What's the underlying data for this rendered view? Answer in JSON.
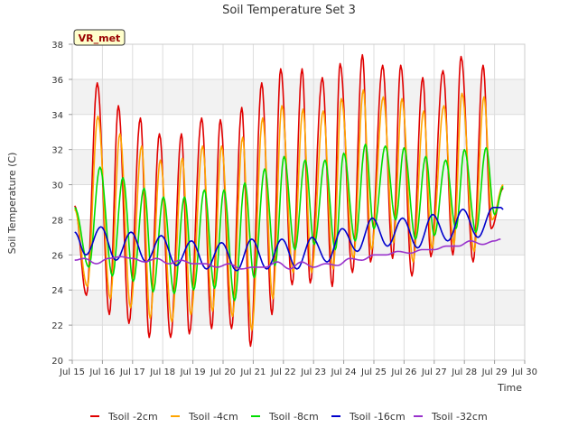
{
  "chart_data": {
    "type": "line",
    "title": "Soil Temperature Set 3",
    "xlabel": "Time",
    "ylabel": "Soil Temperature (C)",
    "badge": "VR_met",
    "xlim": [
      15,
      30
    ],
    "ylim": [
      20,
      38
    ],
    "x_ticks": [
      15,
      16,
      17,
      18,
      19,
      20,
      21,
      22,
      23,
      24,
      25,
      26,
      27,
      28,
      29,
      30
    ],
    "x_tick_labels": [
      "Jul 15",
      "Jul 16",
      "Jul 17",
      "Jul 18",
      "Jul 19",
      "Jul 20",
      "Jul 21",
      "Jul 22",
      "Jul 23",
      "Jul 24",
      "Jul 25",
      "Jul 26",
      "Jul 27",
      "Jul 28",
      "Jul 29",
      "Jul 30"
    ],
    "y_ticks": [
      20,
      22,
      24,
      26,
      28,
      30,
      32,
      34,
      36,
      38
    ],
    "grid": true,
    "legend_position": "bottom",
    "series": [
      {
        "name": "Tsoil -2cm",
        "color": "#e00000",
        "x": [
          15.08,
          15.47,
          15.83,
          16.23,
          16.53,
          16.88,
          17.26,
          17.55,
          17.89,
          18.26,
          18.62,
          18.88,
          19.29,
          19.62,
          19.91,
          20.28,
          20.62,
          20.91,
          21.28,
          21.62,
          21.91,
          22.29,
          22.62,
          22.89,
          23.29,
          23.62,
          23.88,
          24.29,
          24.62,
          24.89,
          25.29,
          25.62,
          25.89,
          26.26,
          26.62,
          26.89,
          27.29,
          27.62,
          27.89,
          28.29,
          28.62,
          28.89,
          29.29
        ],
        "values": [
          28.8,
          23.7,
          35.8,
          22.6,
          34.5,
          22.1,
          33.8,
          21.3,
          32.9,
          21.3,
          32.9,
          21.5,
          33.8,
          21.8,
          33.7,
          21.8,
          34.4,
          20.8,
          35.8,
          22.6,
          36.6,
          24.3,
          36.6,
          24.4,
          36.1,
          24.2,
          36.9,
          25.0,
          37.4,
          25.6,
          36.8,
          25.8,
          36.8,
          24.8,
          36.1,
          25.9,
          36.5,
          26.0,
          37.3,
          25.6,
          36.8,
          27.5,
          29.8
        ]
      },
      {
        "name": "Tsoil -4cm",
        "color": "#ffa500",
        "x": [
          15.08,
          15.5,
          15.85,
          16.26,
          16.58,
          16.93,
          17.3,
          17.58,
          17.92,
          18.3,
          18.65,
          18.93,
          19.32,
          19.65,
          19.95,
          20.31,
          20.65,
          20.95,
          21.31,
          21.65,
          21.95,
          22.32,
          22.65,
          22.93,
          23.32,
          23.65,
          23.92,
          24.32,
          24.65,
          24.92,
          25.31,
          25.65,
          25.93,
          26.3,
          26.65,
          26.92,
          27.32,
          27.65,
          27.92,
          28.32,
          28.65,
          28.92,
          29.29
        ],
        "values": [
          28.6,
          24.2,
          33.9,
          23.5,
          32.9,
          23.0,
          32.2,
          22.4,
          31.4,
          22.2,
          31.5,
          22.6,
          32.2,
          22.8,
          32.2,
          22.5,
          32.7,
          21.7,
          33.8,
          23.5,
          34.5,
          25.0,
          34.3,
          25.0,
          34.2,
          25.2,
          34.9,
          25.8,
          35.4,
          26.3,
          35.0,
          26.7,
          34.9,
          25.6,
          34.2,
          26.4,
          34.5,
          26.6,
          35.2,
          26.2,
          35.0,
          28.0,
          30.0
        ]
      },
      {
        "name": "Tsoil -8cm",
        "color": "#00dd00",
        "x": [
          15.08,
          15.55,
          15.92,
          16.33,
          16.68,
          17.02,
          17.38,
          17.68,
          18.02,
          18.38,
          18.72,
          19.02,
          19.38,
          19.72,
          20.03,
          20.38,
          20.72,
          21.03,
          21.38,
          21.72,
          22.02,
          22.38,
          22.72,
          23.02,
          23.38,
          23.72,
          24.0,
          24.38,
          24.72,
          25.0,
          25.38,
          25.72,
          26.0,
          26.38,
          26.72,
          27.0,
          27.38,
          27.72,
          28.0,
          28.38,
          28.72,
          29.0,
          29.29
        ],
        "values": [
          28.7,
          25.3,
          31.0,
          24.8,
          30.4,
          24.5,
          29.8,
          23.9,
          29.3,
          23.8,
          29.3,
          24.0,
          29.7,
          24.1,
          29.7,
          23.4,
          30.1,
          24.7,
          30.9,
          25.4,
          31.6,
          26.3,
          31.4,
          26.6,
          31.4,
          26.3,
          31.8,
          26.8,
          32.3,
          27.5,
          32.2,
          28.0,
          32.1,
          26.9,
          31.6,
          27.1,
          31.4,
          27.5,
          32.0,
          27.3,
          32.1,
          28.3,
          29.9
        ]
      },
      {
        "name": "Tsoil -16cm",
        "color": "#0000cc",
        "x": [
          15.08,
          15.45,
          15.95,
          16.45,
          16.95,
          17.45,
          17.95,
          18.45,
          18.95,
          19.45,
          19.95,
          20.45,
          20.95,
          21.45,
          21.95,
          22.45,
          22.95,
          23.45,
          23.95,
          24.45,
          24.95,
          25.45,
          25.95,
          26.45,
          26.95,
          27.45,
          27.95,
          28.45,
          28.95,
          29.2,
          29.29
        ],
        "values": [
          27.3,
          26.0,
          27.6,
          25.7,
          27.3,
          25.6,
          27.1,
          25.4,
          26.8,
          25.2,
          26.7,
          25.1,
          26.9,
          25.2,
          26.9,
          25.2,
          27.0,
          25.6,
          27.5,
          26.2,
          28.1,
          26.5,
          28.1,
          26.4,
          28.3,
          26.8,
          28.6,
          27.0,
          28.7,
          28.7,
          28.6
        ]
      },
      {
        "name": "Tsoil -32cm",
        "color": "#9932cc",
        "x": [
          15.08,
          15.4,
          15.8,
          16.2,
          16.6,
          17.0,
          17.4,
          17.8,
          18.2,
          18.6,
          19.0,
          19.4,
          19.8,
          20.2,
          20.6,
          21.0,
          21.4,
          21.8,
          22.2,
          22.6,
          23.0,
          23.4,
          23.8,
          24.2,
          24.6,
          25.0,
          25.4,
          25.8,
          26.2,
          26.6,
          27.0,
          27.4,
          27.8,
          28.2,
          28.6,
          29.0,
          29.2
        ],
        "values": [
          25.7,
          25.8,
          25.5,
          25.8,
          25.9,
          25.8,
          25.6,
          25.8,
          25.5,
          25.7,
          25.5,
          25.5,
          25.3,
          25.5,
          25.2,
          25.3,
          25.3,
          25.6,
          25.2,
          25.6,
          25.3,
          25.5,
          25.4,
          25.8,
          25.7,
          26.0,
          26.0,
          26.2,
          26.1,
          26.3,
          26.3,
          26.5,
          26.5,
          26.8,
          26.6,
          26.8,
          26.9
        ]
      }
    ]
  }
}
